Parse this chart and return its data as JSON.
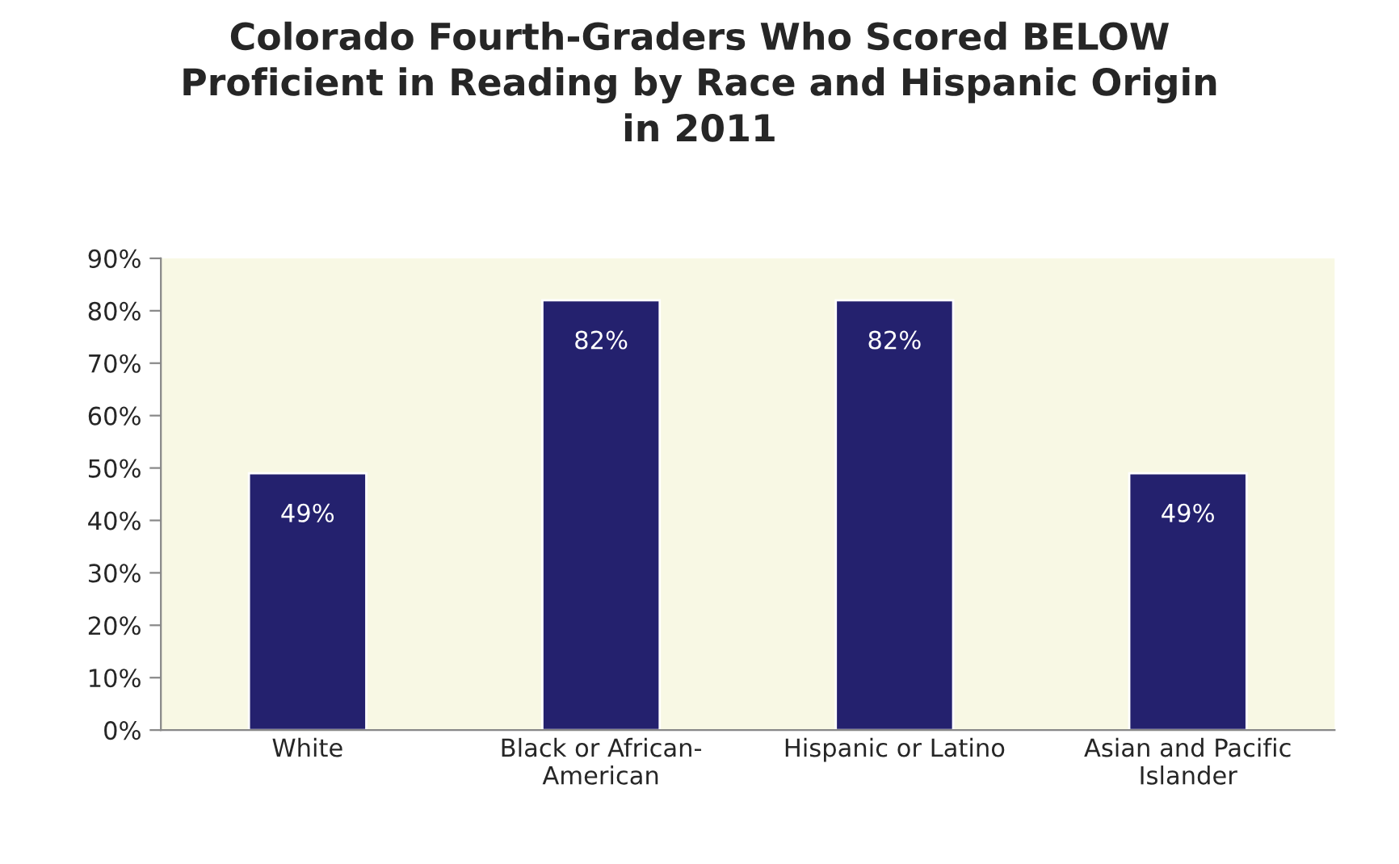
{
  "chart_data": {
    "type": "bar",
    "title": "Colorado Fourth-Graders Who Scored BELOW\nProficient in Reading by Race and Hispanic Origin\nin 2011",
    "categories": [
      "White",
      "Black or African-American",
      "Hispanic or Latino",
      "Asian and Pacific Islander"
    ],
    "values": [
      49,
      82,
      82,
      49
    ],
    "color": "#24216e",
    "value_labels": [
      "49%",
      "82%",
      "82%",
      "49%"
    ],
    "ylim": [
      0,
      90
    ],
    "yticks": [
      {
        "value": 0,
        "label": "0%"
      },
      {
        "value": 10,
        "label": "10%"
      },
      {
        "value": 20,
        "label": "20%"
      },
      {
        "value": 30,
        "label": "30%"
      },
      {
        "value": 40,
        "label": "40%"
      },
      {
        "value": 50,
        "label": "50%"
      },
      {
        "value": 60,
        "label": "60%"
      },
      {
        "value": 70,
        "label": "70%"
      },
      {
        "value": 80,
        "label": "80%"
      },
      {
        "value": 90,
        "label": "90%"
      }
    ],
    "grid": false,
    "legend": false
  }
}
